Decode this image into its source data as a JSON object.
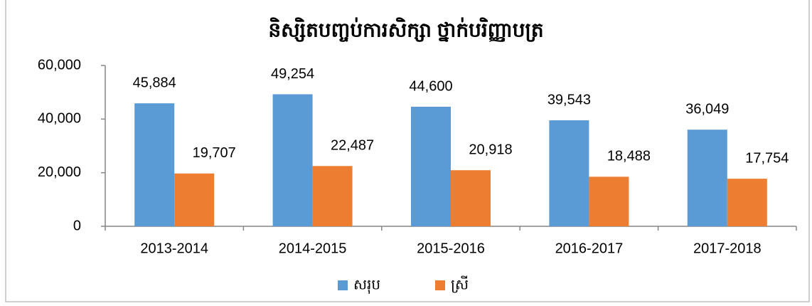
{
  "chart_data": {
    "type": "bar",
    "title": "និស្សិតបញ្ចប់ការសិក្សា ថ្នាក់បរិញ្ញាបត្រ",
    "categories": [
      "2013-2014",
      "2014-2015",
      "2015-2016",
      "2016-2017",
      "2017-2018"
    ],
    "series": [
      {
        "name": "សរុប",
        "color": "#5b9bd5",
        "values": [
          45884,
          49254,
          44600,
          39543,
          36049
        ],
        "value_labels": [
          "45,884",
          "49,254",
          "44,600",
          "39,543",
          "36,049"
        ]
      },
      {
        "name": "ស្រី",
        "color": "#ed7d31",
        "values": [
          19707,
          22487,
          20918,
          18488,
          17754
        ],
        "value_labels": [
          "19,707",
          "22,487",
          "20,918",
          "18,488",
          "17,754"
        ]
      }
    ],
    "ylim": [
      0,
      60000
    ],
    "yticks": [
      0,
      {
        "value": 20000,
        "label": "20,000"
      },
      {
        "value": 40000,
        "label": "40,000"
      },
      {
        "value": 60000,
        "label": "60,000"
      }
    ],
    "grid": false,
    "legend": "bottom"
  }
}
